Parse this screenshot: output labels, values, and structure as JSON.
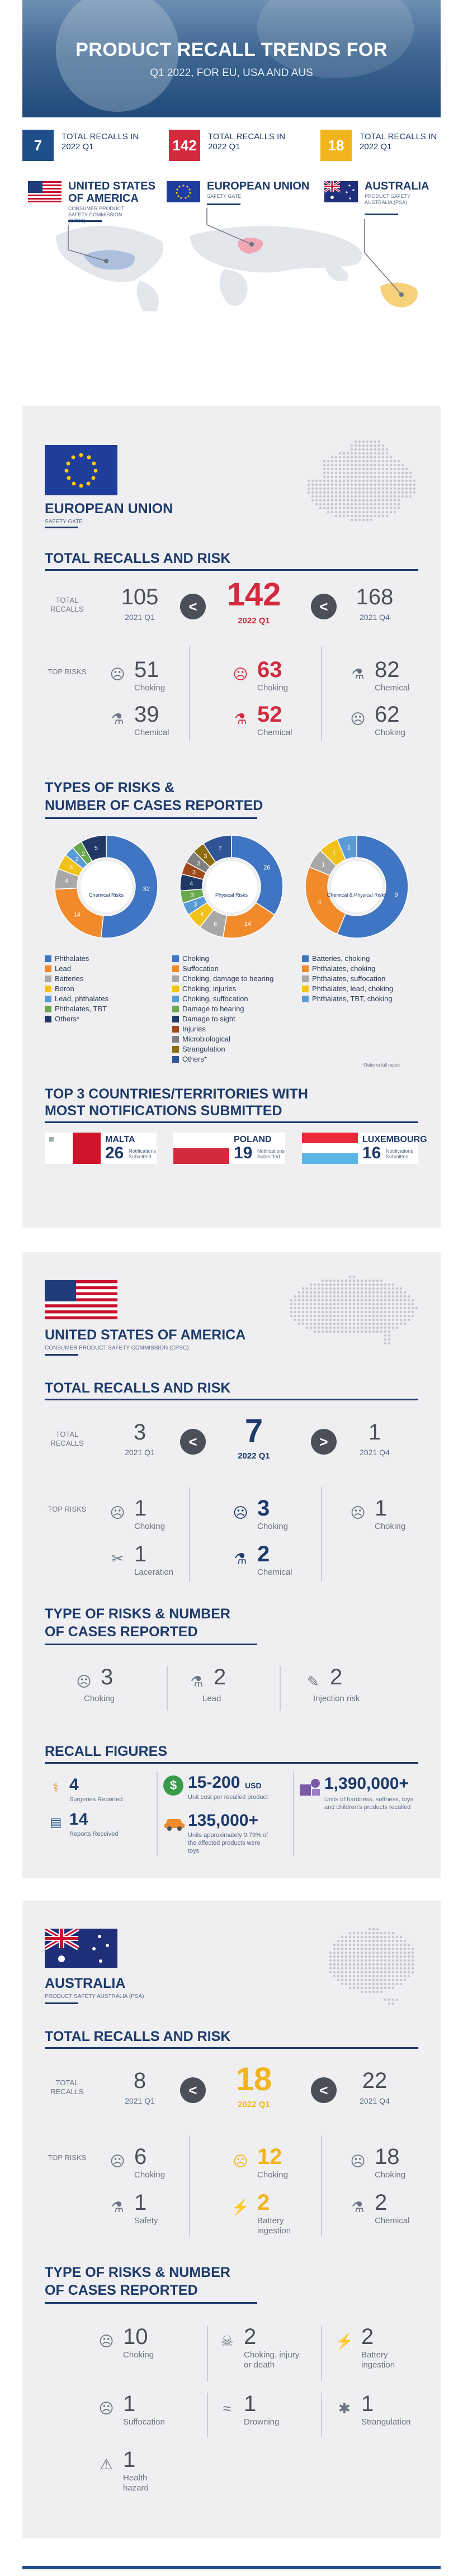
{
  "header": {
    "title": "PRODUCT RECALL TRENDS FOR",
    "subtitle": "Q1 2022, FOR EU, USA AND AUS"
  },
  "summary": [
    {
      "count": "7",
      "label": "TOTAL RECALLS IN 2022 Q1",
      "country": "UNITED STATES OF AMERICA",
      "agency": "CONSUMER PRODUCT SAFETY COMMISSION (CPSC)",
      "color": "#1f4f8a"
    },
    {
      "count": "142",
      "label": "TOTAL RECALLS IN 2022 Q1",
      "country": "EUROPEAN UNION",
      "agency": "SAFETY GATE",
      "color": "#d32a3e"
    },
    {
      "count": "18",
      "label": "TOTAL RECALLS IN 2022 Q1",
      "country": "AUSTRALIA",
      "agency": "PRODUCT SAFETY AUSTRALIA (PSA)",
      "color": "#f2b41c"
    }
  ],
  "eu": {
    "name": "EUROPEAN UNION",
    "agency": "SAFETY GATE",
    "totals_title": "TOTAL RECALLS AND RISK",
    "total_recalls_label": "TOTAL RECALLS",
    "top_risks_label": "TOP RISKS",
    "prev": {
      "value": "105",
      "period": "2021 Q1"
    },
    "current": {
      "value": "142",
      "period": "2022 Q1"
    },
    "next": {
      "value": "168",
      "period": "2021 Q4"
    },
    "arrow_left": "<",
    "arrow_right": "<",
    "risks": [
      [
        {
          "value": "51",
          "name": "Choking"
        },
        {
          "value": "39",
          "name": "Chemical"
        }
      ],
      [
        {
          "value": "63",
          "name": "Choking"
        },
        {
          "value": "52",
          "name": "Chemical"
        }
      ],
      [
        {
          "value": "82",
          "name": "Chemical"
        },
        {
          "value": "62",
          "name": "Choking"
        }
      ]
    ],
    "types_title_1": "TYPES OF RISKS &",
    "types_title_2": "NUMBER OF CASES REPORTED",
    "donut_labels": [
      "Chemical Risks",
      "Physical Risks",
      "Chemical & Physical Risks"
    ],
    "legend_chemical": [
      {
        "label": "Phthalates",
        "color": "#3f75c2"
      },
      {
        "label": "Lead",
        "color": "#f08a2b"
      },
      {
        "label": "Batteries",
        "color": "#a8a8a8"
      },
      {
        "label": "Boron",
        "color": "#f2c21c"
      },
      {
        "label": "Lead, phthalates",
        "color": "#5b9bd5"
      },
      {
        "label": "Phthalates, TBT",
        "color": "#6aa84f"
      },
      {
        "label": "Others*",
        "color": "#1f3864"
      }
    ],
    "legend_physical": [
      {
        "label": "Choking",
        "color": "#3f75c2"
      },
      {
        "label": "Suffocation",
        "color": "#f08a2b"
      },
      {
        "label": "Choking, damage to hearing",
        "color": "#a8a8a8"
      },
      {
        "label": "Choking, injuries",
        "color": "#f2c21c"
      },
      {
        "label": "Choking, suffocation",
        "color": "#5b9bd5"
      },
      {
        "label": "Damage to hearing",
        "color": "#6aa84f"
      },
      {
        "label": "Damage to sight",
        "color": "#1f3864"
      },
      {
        "label": "Injuries",
        "color": "#9e4a1a"
      },
      {
        "label": "Microbiological",
        "color": "#7f7f7f"
      },
      {
        "label": "Strangulation",
        "color": "#8c6d0f"
      },
      {
        "label": "Others*",
        "color": "#2f5597"
      }
    ],
    "legend_both": [
      {
        "label": "Batteries, choking",
        "color": "#3f75c2"
      },
      {
        "label": "Phthalates, choking",
        "color": "#f08a2b"
      },
      {
        "label": "Phthalates, suffocation",
        "color": "#a8a8a8"
      },
      {
        "label": "Phthalates, lead, choking",
        "color": "#f2c21c"
      },
      {
        "label": "Phthalates, TBT, choking",
        "color": "#5b9bd5"
      }
    ],
    "footnote": "*Refer to full report",
    "top3_title_1": "TOP 3 COUNTRIES/TERRITORIES WITH",
    "top3_title_2": "MOST NOTIFICATIONS SUBMITTED",
    "top3": [
      {
        "name": "MALTA",
        "value": "26",
        "sub": "Notifications Submitted"
      },
      {
        "name": "POLAND",
        "value": "19",
        "sub": "Notifications Submitted"
      },
      {
        "name": "LUXEMBOURG",
        "value": "16",
        "sub": "Notifications Submitted"
      }
    ]
  },
  "chart_data": [
    {
      "type": "pie",
      "title": "Chemical Risks",
      "labels": [
        "Phthalates",
        "Lead",
        "Batteries",
        "Boron",
        "Lead, phthalates",
        "Phthalates, TBT",
        "Others*"
      ],
      "values": [
        32,
        14,
        4,
        3,
        2,
        2,
        5
      ],
      "colors": [
        "#3f75c2",
        "#f08a2b",
        "#a8a8a8",
        "#f2c21c",
        "#5b9bd5",
        "#6aa84f",
        "#1f3864"
      ]
    },
    {
      "type": "pie",
      "title": "Physical Risks",
      "labels": [
        "Choking",
        "Suffocation",
        "Choking, damage to hearing",
        "Choking, injuries",
        "Choking, suffocation",
        "Damage to hearing",
        "Damage to sight",
        "Injuries",
        "Microbiological",
        "Strangulation",
        "Others*"
      ],
      "values": [
        26,
        14,
        6,
        4,
        3,
        3,
        4,
        3,
        3,
        3,
        7
      ],
      "colors": [
        "#3f75c2",
        "#f08a2b",
        "#a8a8a8",
        "#f2c21c",
        "#5b9bd5",
        "#6aa84f",
        "#1f3864",
        "#9e4a1a",
        "#7f7f7f",
        "#8c6d0f",
        "#2f5597"
      ]
    },
    {
      "type": "pie",
      "title": "Chemical & Physical Risks",
      "labels": [
        "Batteries, choking",
        "Phthalates, choking",
        "Phthalates, suffocation",
        "Phthalates, lead, choking",
        "Phthalates, TBT, choking"
      ],
      "values": [
        9,
        4,
        1,
        1,
        1
      ],
      "colors": [
        "#3f75c2",
        "#f08a2b",
        "#a8a8a8",
        "#f2c21c",
        "#5b9bd5"
      ]
    }
  ],
  "us": {
    "name": "UNITED STATES OF AMERICA",
    "agency": "CONSUMER PRODUCT SAFETY COMMISSION (CPSC)",
    "totals_title": "TOTAL RECALLS AND RISK",
    "total_recalls_label": "TOTAL RECALLS",
    "top_risks_label": "TOP RISKS",
    "prev": {
      "value": "3",
      "period": "2021 Q1"
    },
    "current": {
      "value": "7",
      "period": "2022 Q1"
    },
    "next": {
      "value": "1",
      "period": "2021 Q4"
    },
    "arrow_left": "<",
    "arrow_right": ">",
    "risks": [
      [
        {
          "value": "1",
          "name": "Choking"
        },
        {
          "value": "1",
          "name": "Laceration"
        }
      ],
      [
        {
          "value": "3",
          "name": "Choking"
        },
        {
          "value": "2",
          "name": "Chemical"
        }
      ],
      [
        {
          "value": "1",
          "name": "Choking"
        }
      ]
    ],
    "types_title_1": "TYPE OF RISKS & NUMBER",
    "types_title_2": "OF CASES REPORTED",
    "types": [
      {
        "value": "3",
        "name": "Choking"
      },
      {
        "value": "2",
        "name": "Lead"
      },
      {
        "value": "2",
        "name": "Injection risk"
      }
    ],
    "recall_title": "RECALL FIGURES",
    "figures": {
      "surgeries": {
        "value": "4",
        "label": "Surgeries Reported"
      },
      "reports": {
        "value": "14",
        "label": "Reports Received"
      },
      "unit_cost": {
        "value": "15-200",
        "unit": "USD",
        "label": "Unit cost per recalled product"
      },
      "units": {
        "value": "135,000+",
        "label": "Units approximately 9.79% of the affected products were toys"
      },
      "hardness": {
        "value": "1,390,000+",
        "label": "Units of hardness, softness, toys and children's products recalled"
      }
    }
  },
  "au": {
    "name": "AUSTRALIA",
    "agency": "PRODUCT SAFETY AUSTRALIA (PSA)",
    "totals_title": "TOTAL RECALLS AND RISK",
    "total_recalls_label": "TOTAL RECALLS",
    "top_risks_label": "TOP RISKS",
    "prev": {
      "value": "8",
      "period": "2021 Q1"
    },
    "current": {
      "value": "18",
      "period": "2022 Q1"
    },
    "next": {
      "value": "22",
      "period": "2021 Q4"
    },
    "arrow_left": "<",
    "arrow_right": "<",
    "risks": [
      [
        {
          "value": "6",
          "name": "Choking"
        },
        {
          "value": "1",
          "name": "Safety"
        }
      ],
      [
        {
          "value": "12",
          "name": "Choking"
        },
        {
          "value": "2",
          "name": "Battery ingestion"
        }
      ],
      [
        {
          "value": "18",
          "name": "Choking"
        },
        {
          "value": "2",
          "name": "Chemical"
        }
      ]
    ],
    "types_title_1": "TYPE OF RISKS & NUMBER",
    "types_title_2": "OF CASES REPORTED",
    "types": [
      {
        "value": "10",
        "name": "Choking"
      },
      {
        "value": "2",
        "name": "Choking, injury or death"
      },
      {
        "value": "2",
        "name": "Battery ingestion"
      },
      {
        "value": "1",
        "name": "Suffocation"
      },
      {
        "value": "1",
        "name": "Drowning"
      },
      {
        "value": "1",
        "name": "Strangulation"
      },
      {
        "value": "1",
        "name": "Health hazard"
      }
    ]
  }
}
